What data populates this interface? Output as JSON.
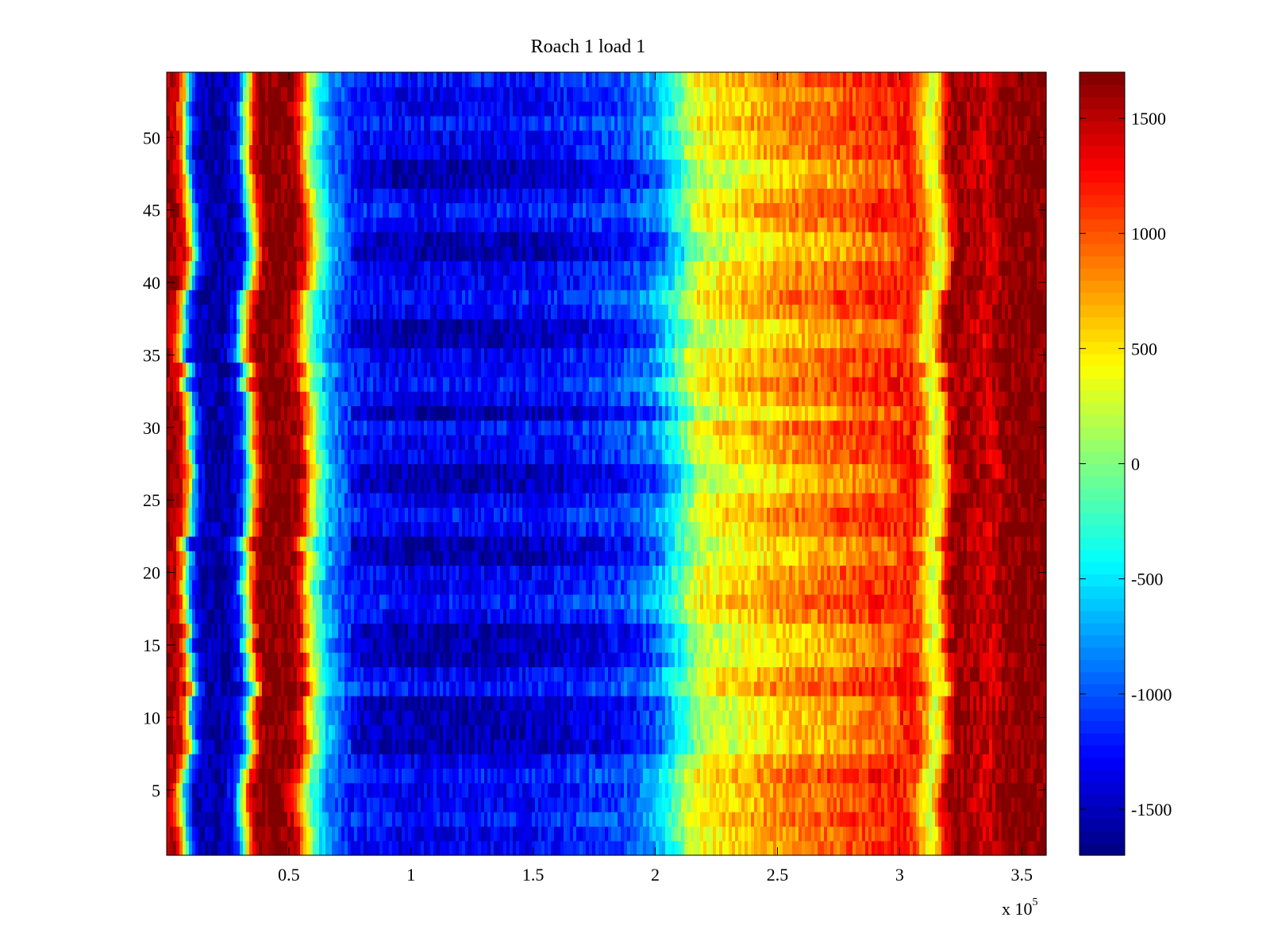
{
  "chart_data": {
    "type": "heatmap",
    "title": "Roach 1 load 1",
    "xlabel": "",
    "ylabel": "",
    "x_multiplier_label": {
      "base": "x 10",
      "exponent": "5"
    },
    "xlim": [
      0,
      360000
    ],
    "ylim": [
      0.5,
      54.5
    ],
    "x_ticks": [
      50000,
      100000,
      150000,
      200000,
      250000,
      300000,
      350000
    ],
    "x_tick_labels": [
      "0.5",
      "1",
      "1.5",
      "2",
      "2.5",
      "3",
      "3.5"
    ],
    "y_ticks": [
      5,
      10,
      15,
      20,
      25,
      30,
      35,
      40,
      45,
      50
    ],
    "y_tick_labels": [
      "5",
      "10",
      "15",
      "20",
      "25",
      "30",
      "35",
      "40",
      "45",
      "50"
    ],
    "rows": 54,
    "colormap": "jet",
    "clim": [
      -1700,
      1700
    ],
    "colorbar": {
      "ticks": [
        -1500,
        -1000,
        -500,
        0,
        500,
        1000,
        1500
      ],
      "tick_labels": [
        "-1500",
        "-1000",
        "-500",
        "0",
        "500",
        "1000",
        "1500"
      ]
    },
    "column_profile": {
      "x": [
        0,
        5000,
        8000,
        10000,
        12000,
        15000,
        25000,
        30000,
        33000,
        35000,
        37000,
        40000,
        50000,
        55000,
        58000,
        62000,
        66000,
        70000,
        75000,
        80000,
        100000,
        150000,
        190000,
        200000,
        205000,
        210000,
        215000,
        220000,
        235000,
        250000,
        270000,
        290000,
        305000,
        310000,
        313000,
        315000,
        318000,
        320000,
        323000,
        330000,
        337000,
        343000,
        350000,
        360000
      ],
      "value": [
        1650,
        1400,
        500,
        -600,
        -1200,
        -1550,
        -1550,
        -1200,
        0,
        700,
        1400,
        1700,
        1700,
        1300,
        500,
        -200,
        -650,
        -900,
        -1150,
        -1250,
        -1350,
        -1300,
        -1050,
        -800,
        -500,
        -200,
        200,
        400,
        550,
        750,
        900,
        1100,
        1200,
        800,
        300,
        300,
        800,
        1400,
        1650,
        1550,
        1400,
        1650,
        1700,
        1700
      ]
    },
    "cool_rows": [
      8,
      9,
      10,
      11,
      14,
      15,
      16,
      21,
      22,
      26,
      27,
      31,
      36,
      37,
      42,
      43,
      47,
      48
    ],
    "colors": {
      "jet": [
        "#00008f",
        "#0000ff",
        "#00ffff",
        "#ffff00",
        "#ff0000",
        "#800000"
      ],
      "axes": "#000000",
      "background": "#ffffff"
    }
  }
}
